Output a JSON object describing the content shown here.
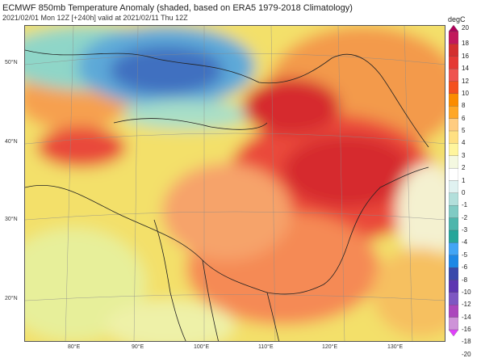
{
  "header": {
    "title": "ECMWF 850mb Temperature Anomaly (shaded, based on ERA5 1979-2018 Climatology)",
    "subtitle": "2021/02/01 Mon 12Z [+240h] valid at 2021/02/11 Thu 12Z"
  },
  "map": {
    "lat_labels": [
      "50°N",
      "40°N",
      "30°N",
      "20°N"
    ],
    "lon_labels": [
      "80°E",
      "90°E",
      "100°E",
      "110°E",
      "120°E",
      "130°E"
    ]
  },
  "colorbar": {
    "unit": "degC",
    "ticks": [
      "20",
      "18",
      "16",
      "14",
      "12",
      "10",
      "8",
      "6",
      "5",
      "4",
      "3",
      "2",
      "1",
      "0",
      "-1",
      "-2",
      "-3",
      "-4",
      "-5",
      "-6",
      "-8",
      "-10",
      "-12",
      "-14",
      "-16",
      "-18",
      "-20"
    ],
    "colors": [
      "#b0005a",
      "#c2185b",
      "#d32f2f",
      "#e53935",
      "#ef5350",
      "#f4511e",
      "#fb8c00",
      "#ffa726",
      "#ffcc80",
      "#ffe082",
      "#fff59d",
      "#f4f8e0",
      "#ffffff",
      "#e0f2f1",
      "#b2dfdb",
      "#80cbc4",
      "#4db6ac",
      "#26a69a",
      "#42a5f5",
      "#1e88e5",
      "#3949ab",
      "#5e35b1",
      "#7e57c2",
      "#ab47bc",
      "#ce93d8",
      "#e040fb"
    ]
  }
}
